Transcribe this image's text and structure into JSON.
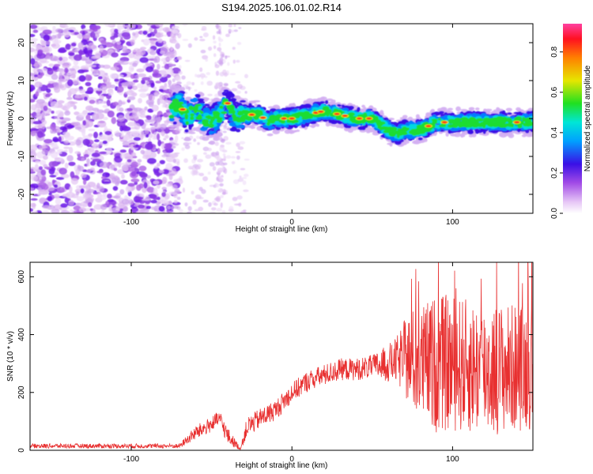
{
  "title": "S194.2025.106.01.02.R14",
  "chart_data": [
    {
      "type": "heatmap",
      "xlabel": "Height of straight line (km)",
      "ylabel": "Frequency (Hz)",
      "xlim": [
        -163,
        150
      ],
      "ylim": [
        -25,
        25
      ],
      "x_ticks": [
        -100,
        0,
        100
      ],
      "y_ticks": [
        -20,
        -10,
        0,
        10,
        20
      ],
      "colorbar": {
        "label": "Normalized spectral amplitude",
        "range": [
          0,
          0.94
        ],
        "ticks": [
          0.0,
          0.2,
          0.4,
          0.6,
          0.8
        ]
      },
      "ridge_track": [
        [
          -75,
          2
        ],
        [
          -70,
          4
        ],
        [
          -65,
          0
        ],
        [
          -60,
          3
        ],
        [
          -55,
          0
        ],
        [
          -50,
          -1
        ],
        [
          -45,
          1
        ],
        [
          -40,
          4
        ],
        [
          -35,
          0
        ],
        [
          -30,
          1
        ],
        [
          -20,
          1
        ],
        [
          -15,
          -1
        ],
        [
          -10,
          0
        ],
        [
          0,
          0
        ],
        [
          10,
          1
        ],
        [
          20,
          2
        ],
        [
          30,
          1
        ],
        [
          40,
          0
        ],
        [
          50,
          0
        ],
        [
          60,
          -3
        ],
        [
          65,
          -4
        ],
        [
          70,
          -3
        ],
        [
          80,
          -3
        ],
        [
          90,
          -1
        ],
        [
          100,
          -1
        ],
        [
          110,
          -1
        ],
        [
          120,
          -1
        ],
        [
          130,
          -1
        ],
        [
          140,
          -1
        ],
        [
          150,
          -1
        ]
      ]
    },
    {
      "type": "line",
      "xlabel": "Height of straight line (km)",
      "ylabel": "SNR (10 * v/v)",
      "xlim": [
        -163,
        150
      ],
      "ylim": [
        0,
        650
      ],
      "x_ticks": [
        -100,
        0,
        100
      ],
      "y_ticks": [
        0,
        200,
        400,
        600
      ],
      "series": [
        {
          "color": "#e83030",
          "envelope": [
            [
              -163,
              15
            ],
            [
              -70,
              15
            ],
            [
              -60,
              60
            ],
            [
              -50,
              90
            ],
            [
              -45,
              110
            ],
            [
              -40,
              50
            ],
            [
              -32,
              5
            ],
            [
              -28,
              80
            ],
            [
              -20,
              110
            ],
            [
              -10,
              140
            ],
            [
              0,
              200
            ],
            [
              10,
              240
            ],
            [
              20,
              260
            ],
            [
              30,
              280
            ],
            [
              40,
              280
            ],
            [
              50,
              290
            ],
            [
              60,
              300
            ],
            [
              70,
              320
            ],
            [
              80,
              300
            ],
            [
              100,
              300
            ],
            [
              120,
              280
            ],
            [
              150,
              290
            ]
          ],
          "noise_amplitude": [
            [
              -163,
              8
            ],
            [
              -70,
              8
            ],
            [
              -60,
              25
            ],
            [
              -40,
              30
            ],
            [
              -32,
              5
            ],
            [
              -28,
              35
            ],
            [
              0,
              35
            ],
            [
              50,
              40
            ],
            [
              65,
              80
            ],
            [
              75,
              180
            ],
            [
              90,
              240
            ],
            [
              120,
              230
            ],
            [
              150,
              220
            ]
          ]
        }
      ]
    }
  ]
}
